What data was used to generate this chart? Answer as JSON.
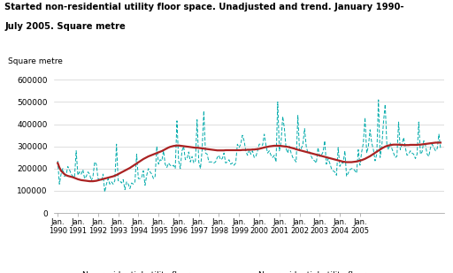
{
  "title_line1": "Started non-residential utility floor space. Unadjusted and trend. January 1990-",
  "title_line2": "July 2005. Square metre",
  "ylabel": "Square metre",
  "yticks": [
    0,
    100000,
    200000,
    300000,
    400000,
    500000,
    600000
  ],
  "ylim": [
    0,
    640000
  ],
  "unadj_color": "#00AAAA",
  "trend_color": "#AA2222",
  "bg_color": "#ffffff",
  "legend_unadj": "Non-residential utility floor space,\nunadjusted",
  "legend_trend": "Non-residential utility floor\nspace, trend",
  "unadjusted": [
    235000,
    130000,
    175000,
    200000,
    165000,
    170000,
    210000,
    195000,
    175000,
    165000,
    160000,
    280000,
    170000,
    185000,
    175000,
    195000,
    155000,
    165000,
    185000,
    175000,
    145000,
    165000,
    230000,
    220000,
    155000,
    150000,
    145000,
    175000,
    95000,
    130000,
    155000,
    130000,
    140000,
    130000,
    145000,
    310000,
    145000,
    145000,
    135000,
    150000,
    105000,
    140000,
    130000,
    110000,
    135000,
    130000,
    140000,
    265000,
    155000,
    155000,
    160000,
    190000,
    125000,
    170000,
    200000,
    185000,
    175000,
    155000,
    165000,
    300000,
    220000,
    240000,
    235000,
    280000,
    220000,
    205000,
    225000,
    215000,
    210000,
    215000,
    200000,
    415000,
    235000,
    200000,
    280000,
    300000,
    240000,
    245000,
    275000,
    230000,
    255000,
    225000,
    235000,
    420000,
    230000,
    200000,
    285000,
    460000,
    270000,
    265000,
    230000,
    230000,
    230000,
    225000,
    230000,
    250000,
    260000,
    240000,
    245000,
    270000,
    225000,
    230000,
    240000,
    220000,
    225000,
    215000,
    225000,
    310000,
    295000,
    310000,
    350000,
    325000,
    280000,
    260000,
    285000,
    265000,
    280000,
    250000,
    255000,
    280000,
    310000,
    310000,
    305000,
    355000,
    305000,
    270000,
    280000,
    260000,
    250000,
    260000,
    230000,
    500000,
    280000,
    320000,
    435000,
    380000,
    290000,
    270000,
    300000,
    270000,
    250000,
    240000,
    230000,
    440000,
    280000,
    290000,
    310000,
    380000,
    300000,
    270000,
    275000,
    255000,
    240000,
    235000,
    225000,
    295000,
    255000,
    260000,
    275000,
    325000,
    220000,
    245000,
    225000,
    200000,
    190000,
    185000,
    170000,
    295000,
    210000,
    225000,
    225000,
    280000,
    165000,
    180000,
    195000,
    200000,
    200000,
    190000,
    180000,
    285000,
    215000,
    275000,
    315000,
    430000,
    270000,
    300000,
    375000,
    315000,
    285000,
    235000,
    265000,
    510000,
    250000,
    300000,
    410000,
    490000,
    310000,
    285000,
    315000,
    290000,
    270000,
    250000,
    255000,
    410000,
    285000,
    310000,
    340000,
    295000,
    260000,
    265000,
    280000,
    270000,
    265000,
    245000,
    265000,
    410000,
    265000,
    275000,
    325000,
    305000,
    265000,
    255000,
    295000,
    310000,
    295000,
    280000,
    290000,
    355000,
    290000
  ],
  "trend": [
    225000,
    205000,
    190000,
    182000,
    175000,
    170000,
    167000,
    165000,
    163000,
    161000,
    158000,
    155000,
    152000,
    150000,
    148000,
    147000,
    146000,
    145000,
    144000,
    143000,
    143000,
    143000,
    144000,
    145000,
    147000,
    149000,
    151000,
    153000,
    155000,
    157000,
    159000,
    161000,
    163000,
    165000,
    168000,
    171000,
    175000,
    179000,
    183000,
    187000,
    191000,
    195000,
    199000,
    203000,
    208000,
    213000,
    218000,
    223000,
    228000,
    233000,
    238000,
    243000,
    247000,
    251000,
    255000,
    258000,
    261000,
    264000,
    267000,
    270000,
    273000,
    276000,
    279000,
    283000,
    287000,
    291000,
    295000,
    298000,
    300000,
    302000,
    303000,
    304000,
    304000,
    303000,
    302000,
    301000,
    300000,
    299000,
    298000,
    297000,
    296000,
    295000,
    294000,
    294000,
    293000,
    292000,
    291000,
    290000,
    289000,
    288000,
    287000,
    286000,
    285000,
    284000,
    283000,
    282000,
    282000,
    282000,
    282000,
    282000,
    283000,
    283000,
    283000,
    283000,
    283000,
    283000,
    283000,
    283000,
    283000,
    283000,
    284000,
    284000,
    284000,
    285000,
    285000,
    285000,
    286000,
    286000,
    287000,
    288000,
    289000,
    291000,
    293000,
    295000,
    297000,
    298000,
    300000,
    301000,
    302000,
    303000,
    303000,
    303000,
    303000,
    302000,
    301000,
    300000,
    299000,
    298000,
    296000,
    294000,
    292000,
    290000,
    287000,
    285000,
    283000,
    281000,
    279000,
    277000,
    275000,
    273000,
    271000,
    269000,
    267000,
    265000,
    263000,
    261000,
    259000,
    257000,
    255000,
    253000,
    251000,
    249000,
    247000,
    245000,
    243000,
    241000,
    239000,
    237000,
    235000,
    233000,
    231000,
    230000,
    229000,
    229000,
    229000,
    229000,
    230000,
    231000,
    232000,
    234000,
    236000,
    238000,
    241000,
    244000,
    248000,
    252000,
    256000,
    261000,
    266000,
    271000,
    276000,
    281000,
    286000,
    291000,
    295000,
    299000,
    302000,
    304000,
    306000,
    307000,
    308000,
    308000,
    308000,
    308000,
    307000,
    307000,
    306000,
    306000,
    306000,
    306000,
    307000,
    307000,
    307000,
    307000,
    307000,
    308000,
    308000,
    309000,
    310000,
    311000,
    312000,
    313000,
    314000,
    315000,
    316000,
    317000,
    317000,
    317000,
    317000
  ]
}
